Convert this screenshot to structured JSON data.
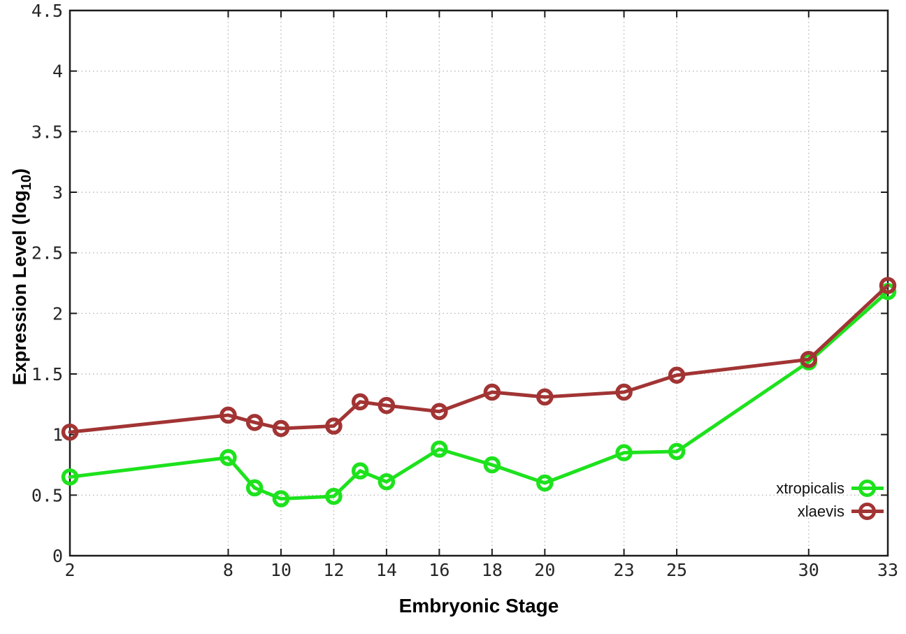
{
  "chart_data": {
    "type": "line",
    "title": "",
    "xlabel": "Embryonic Stage",
    "ylabel": "Expression Level (log10)",
    "ylabel_parts": {
      "pre": "Expression Level (log",
      "sub": "10",
      "post": ")"
    },
    "xlim": [
      2,
      33
    ],
    "ylim": [
      0,
      4.5
    ],
    "grid": true,
    "legend_position": "inside-bottom-right",
    "x_ticks": [
      "2",
      "8",
      "10",
      "12",
      "14",
      "16",
      "18",
      "20",
      "23",
      "25",
      "30",
      "33"
    ],
    "x_tick_values": [
      2,
      8,
      10,
      12,
      14,
      16,
      18,
      20,
      23,
      25,
      30,
      33
    ],
    "y_ticks": [
      "0",
      "0.5",
      "1",
      "1.5",
      "2",
      "2.5",
      "3",
      "3.5",
      "4",
      "4.5"
    ],
    "y_tick_values": [
      0,
      0.5,
      1,
      1.5,
      2,
      2.5,
      3,
      3.5,
      4,
      4.5
    ],
    "x": [
      2,
      8,
      9,
      10,
      12,
      13,
      14,
      16,
      18,
      20,
      23,
      25,
      30,
      33
    ],
    "series": [
      {
        "name": "xtropicalis",
        "color": "#1de21d",
        "values": [
          0.65,
          0.81,
          0.56,
          0.47,
          0.49,
          0.7,
          0.61,
          0.88,
          0.75,
          0.6,
          0.85,
          0.86,
          1.6,
          2.18
        ]
      },
      {
        "name": "xlaevis",
        "color": "#a23434",
        "values": [
          1.02,
          1.16,
          1.1,
          1.05,
          1.07,
          1.27,
          1.24,
          1.19,
          1.35,
          1.31,
          1.35,
          1.49,
          1.62,
          2.23
        ]
      }
    ],
    "colors": {
      "grid": "#b8b8b8",
      "axis": "#1c1c1c",
      "tick_label": "#262626",
      "background": "#ffffff"
    }
  }
}
